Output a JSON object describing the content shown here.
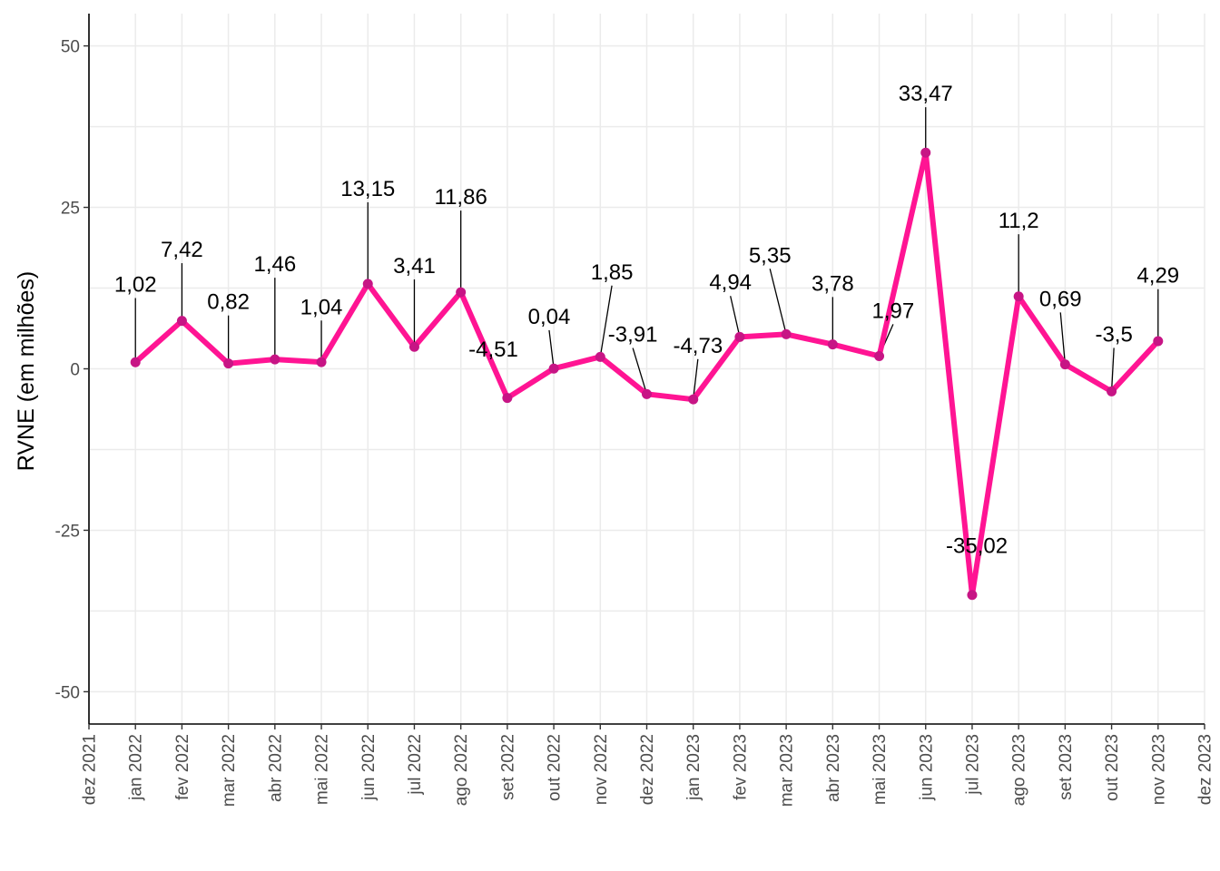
{
  "chart_data": {
    "type": "line",
    "ylabel": "RVNE (em milhões)",
    "xlabel": "",
    "ylim": [
      -55,
      55
    ],
    "yticks": [
      -50,
      -25,
      0,
      25,
      50
    ],
    "ytick_labels": [
      "-50",
      "-25",
      "0",
      "25",
      "50"
    ],
    "x_axis_ticks": [
      "dez 2021",
      "jan 2022",
      "fev 2022",
      "mar 2022",
      "abr 2022",
      "mai 2022",
      "jun 2022",
      "jul 2022",
      "ago 2022",
      "set 2022",
      "out 2022",
      "nov 2022",
      "dez 2022",
      "jan 2023",
      "fev 2023",
      "mar 2023",
      "abr 2023",
      "mai 2023",
      "jun 2023",
      "jul 2023",
      "ago 2023",
      "set 2023",
      "out 2023",
      "nov 2023",
      "dez 2023"
    ],
    "x": [
      "jan 2022",
      "fev 2022",
      "mar 2022",
      "abr 2022",
      "mai 2022",
      "jun 2022",
      "jul 2022",
      "ago 2022",
      "set 2022",
      "out 2022",
      "nov 2022",
      "dez 2022",
      "jan 2023",
      "fev 2023",
      "mar 2023",
      "abr 2023",
      "mai 2023",
      "jun 2023",
      "jul 2023",
      "ago 2023",
      "set 2023",
      "out 2023",
      "nov 2023"
    ],
    "values": [
      1.02,
      7.42,
      0.82,
      1.46,
      1.04,
      13.15,
      3.41,
      11.86,
      -4.51,
      0.04,
      1.85,
      -3.91,
      -4.73,
      4.94,
      5.35,
      3.78,
      1.97,
      33.47,
      -35.02,
      11.2,
      0.69,
      -3.5,
      4.29
    ],
    "data_labels": [
      "1,02",
      "7,42",
      "0,82",
      "1,46",
      "1,04",
      "13,15",
      "3,41",
      "11,86",
      "-4,51",
      "0,04",
      "1,85",
      "-3,91",
      "-4,73",
      "4,94",
      "5,35",
      "3,78",
      "1,97",
      "33,47",
      "-35,02",
      "11,2",
      "0,69",
      "-3,5",
      "4,29"
    ],
    "grid": true,
    "legend": "none",
    "colors": {
      "line": "#ff1493",
      "points": "#c71585"
    }
  }
}
